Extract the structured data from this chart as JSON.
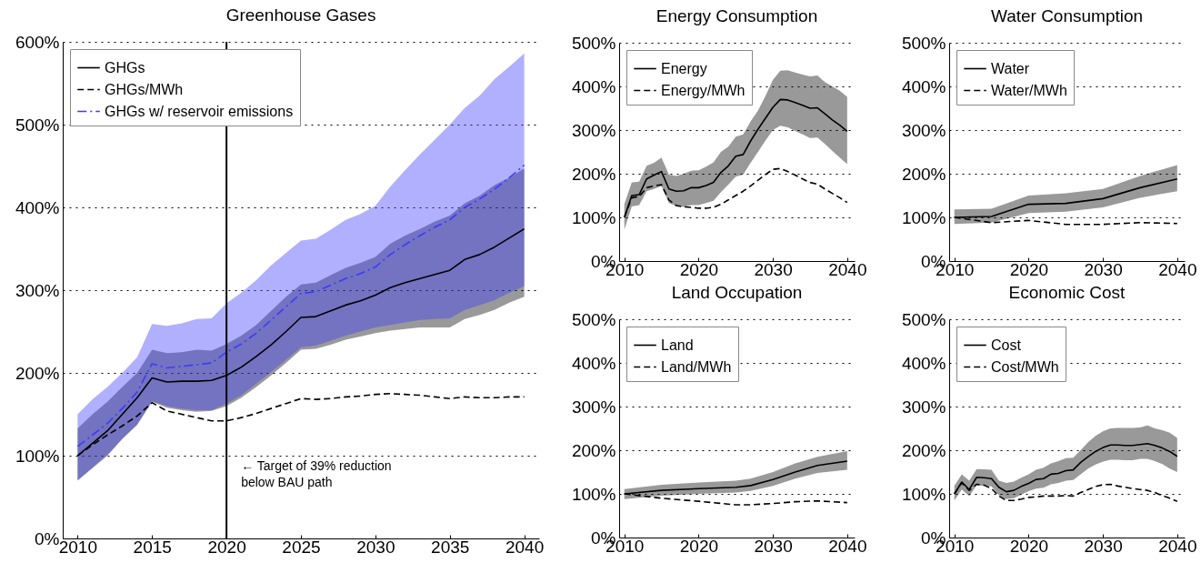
{
  "chart_data": [
    {
      "type": "line",
      "title": "Greenhouse Gases",
      "x": [
        2010,
        2011,
        2012,
        2013,
        2014,
        2015,
        2016,
        2017,
        2018,
        2019,
        2020,
        2021,
        2022,
        2023,
        2024,
        2025,
        2026,
        2027,
        2028,
        2029,
        2030,
        2031,
        2032,
        2033,
        2034,
        2035,
        2036,
        2037,
        2038,
        2039,
        2040
      ],
      "xlim": [
        2009,
        2041
      ],
      "xticks": [
        2010,
        2015,
        2020,
        2025,
        2030,
        2035,
        2040
      ],
      "ylim": [
        0,
        600
      ],
      "yticks": [
        {
          "value": 0,
          "label": "0%"
        },
        {
          "value": 100,
          "label": "100%"
        },
        {
          "value": 200,
          "label": "200%"
        },
        {
          "value": 300,
          "label": "300%"
        },
        {
          "value": 400,
          "label": "400%"
        },
        {
          "value": 500,
          "label": "500%"
        },
        {
          "value": 600,
          "label": "600%"
        }
      ],
      "grid": "y",
      "legend": "top left",
      "series": [
        {
          "name": "GHGs",
          "color": "#000000",
          "line_style": "solid",
          "values": [
            100,
            115,
            130,
            150,
            170,
            194,
            189,
            190,
            190,
            191,
            197,
            207,
            220,
            234,
            250,
            267,
            268,
            275,
            282,
            287,
            294,
            303,
            309,
            314,
            319,
            324,
            337,
            343,
            352,
            363,
            374
          ],
          "lower": [
            70,
            85,
            100,
            120,
            137,
            165,
            158,
            155,
            153,
            154,
            160,
            170,
            183,
            197,
            212,
            228,
            229,
            234,
            240,
            244,
            248,
            251,
            253,
            255,
            255,
            255,
            265,
            270,
            276,
            285,
            292
          ],
          "upper": [
            133,
            150,
            165,
            183,
            200,
            228,
            224,
            225,
            228,
            227,
            235,
            245,
            258,
            275,
            292,
            307,
            309,
            318,
            327,
            333,
            340,
            356,
            366,
            374,
            383,
            390,
            405,
            414,
            427,
            436,
            447
          ]
        },
        {
          "name": "GHGs/MWh",
          "color": "#000000",
          "line_style": "dashed",
          "values": [
            100,
            113,
            125,
            136,
            148,
            164,
            154,
            150,
            146,
            142,
            142,
            146,
            151,
            157,
            163,
            169,
            168,
            169,
            171,
            172,
            174,
            175,
            174,
            173,
            171,
            169,
            171,
            170,
            170,
            171,
            171
          ]
        },
        {
          "name": "GHGs w/ reservoir emissions",
          "color": "#3a3aff",
          "line_style": "dashdot",
          "values": [
            111,
            125,
            139,
            157,
            177,
            211,
            206,
            208,
            210,
            212,
            225,
            235,
            248,
            264,
            280,
            296,
            298,
            306,
            314,
            320,
            328,
            343,
            355,
            366,
            376,
            385,
            400,
            410,
            422,
            436,
            451
          ],
          "lower": [
            70,
            86,
            101,
            121,
            138,
            166,
            160,
            157,
            155,
            155,
            163,
            173,
            187,
            201,
            216,
            231,
            233,
            239,
            245,
            250,
            255,
            258,
            261,
            264,
            265,
            266,
            276,
            282,
            288,
            297,
            305
          ],
          "upper": [
            150,
            168,
            183,
            200,
            219,
            259,
            257,
            260,
            265,
            266,
            284,
            297,
            312,
            330,
            345,
            360,
            362,
            373,
            385,
            392,
            402,
            425,
            445,
            464,
            482,
            500,
            520,
            535,
            555,
            570,
            586
          ]
        }
      ],
      "ref_lines": [
        {
          "axis": "x",
          "value": 2020,
          "label": "← Target of 39% reduction\nbelow BAU path",
          "color": "#000000"
        }
      ]
    },
    {
      "type": "line",
      "title": "Energy Consumption",
      "x": [
        2010,
        2011,
        2012,
        2013,
        2014,
        2015,
        2016,
        2017,
        2018,
        2019,
        2020,
        2021,
        2022,
        2023,
        2024,
        2025,
        2026,
        2027,
        2028,
        2029,
        2030,
        2031,
        2032,
        2033,
        2034,
        2035,
        2036,
        2037,
        2038,
        2039,
        2040
      ],
      "xlim": [
        2009.3,
        2041
      ],
      "xticks": [
        2010,
        2020,
        2030,
        2040
      ],
      "ylim": [
        0,
        500
      ],
      "yticks": [
        {
          "value": 0,
          "label": "0%"
        },
        {
          "value": 100,
          "label": "100%"
        },
        {
          "value": 200,
          "label": "200%"
        },
        {
          "value": 300,
          "label": "300%"
        },
        {
          "value": 400,
          "label": "400%"
        },
        {
          "value": 500,
          "label": "500%"
        }
      ],
      "grid": "y",
      "legend": "top left",
      "series": [
        {
          "name": "Energy",
          "color": "#000000",
          "line_style": "solid",
          "values": [
            100,
            150,
            152,
            188,
            197,
            205,
            165,
            160,
            161,
            168,
            168,
            173,
            180,
            203,
            218,
            240,
            244,
            275,
            302,
            327,
            352,
            370,
            369,
            363,
            357,
            350,
            351,
            337,
            323,
            311,
            297
          ],
          "lower": [
            72,
            125,
            128,
            160,
            165,
            172,
            133,
            126,
            124,
            128,
            128,
            133,
            138,
            158,
            175,
            193,
            198,
            225,
            250,
            276,
            300,
            310,
            306,
            298,
            290,
            282,
            283,
            268,
            252,
            237,
            222
          ],
          "upper": [
            130,
            180,
            182,
            218,
            225,
            237,
            198,
            195,
            200,
            207,
            208,
            216,
            226,
            250,
            262,
            285,
            290,
            320,
            345,
            378,
            415,
            436,
            437,
            432,
            427,
            423,
            425,
            410,
            400,
            390,
            376
          ]
        },
        {
          "name": "Energy/MWh",
          "color": "#000000",
          "line_style": "dashed",
          "values": [
            100,
            145,
            148,
            168,
            172,
            175,
            140,
            127,
            124,
            123,
            121,
            121,
            123,
            130,
            140,
            150,
            160,
            172,
            185,
            198,
            210,
            212,
            205,
            197,
            188,
            180,
            176,
            165,
            155,
            145,
            134
          ]
        }
      ]
    },
    {
      "type": "line",
      "title": "Water Consumption",
      "x": [
        2010,
        2015,
        2020,
        2025,
        2030,
        2035,
        2040
      ],
      "xlim": [
        2009.3,
        2041
      ],
      "xticks": [
        2010,
        2020,
        2030,
        2040
      ],
      "ylim": [
        0,
        500
      ],
      "yticks": [
        {
          "value": 0,
          "label": "0%"
        },
        {
          "value": 100,
          "label": "100%"
        },
        {
          "value": 200,
          "label": "200%"
        },
        {
          "value": 300,
          "label": "300%"
        },
        {
          "value": 400,
          "label": "400%"
        },
        {
          "value": 500,
          "label": "500%"
        }
      ],
      "grid": "y",
      "legend": "top left",
      "series": [
        {
          "name": "Water",
          "color": "#000000",
          "line_style": "solid",
          "values": [
            100,
            102,
            130,
            132,
            143,
            168,
            188
          ],
          "lower": [
            85,
            88,
            110,
            113,
            123,
            145,
            160
          ],
          "upper": [
            118,
            120,
            150,
            155,
            165,
            195,
            220
          ]
        },
        {
          "name": "Water/MWh",
          "color": "#000000",
          "line_style": "dashed",
          "values": [
            100,
            88,
            93,
            84,
            84,
            88,
            86
          ]
        }
      ]
    },
    {
      "type": "line",
      "title": "Land Occupation",
      "x": [
        2010,
        2015,
        2020,
        2025,
        2027,
        2030,
        2033,
        2036,
        2040
      ],
      "xlim": [
        2009.3,
        2041
      ],
      "xticks": [
        2010,
        2020,
        2030,
        2040
      ],
      "ylim": [
        0,
        500
      ],
      "yticks": [
        {
          "value": 0,
          "label": "0%"
        },
        {
          "value": 100,
          "label": "100%"
        },
        {
          "value": 200,
          "label": "200%"
        },
        {
          "value": 300,
          "label": "300%"
        },
        {
          "value": 400,
          "label": "400%"
        },
        {
          "value": 500,
          "label": "500%"
        }
      ],
      "grid": "y",
      "legend": "top left",
      "series": [
        {
          "name": "Land",
          "color": "#000000",
          "line_style": "solid",
          "values": [
            100,
            108,
            112,
            115,
            119,
            133,
            150,
            165,
            175
          ],
          "lower": [
            88,
            96,
            100,
            103,
            107,
            118,
            135,
            148,
            155
          ],
          "upper": [
            111,
            121,
            126,
            130,
            135,
            150,
            170,
            185,
            198
          ]
        },
        {
          "name": "Land/MWh",
          "color": "#000000",
          "line_style": "dashed",
          "values": [
            100,
            90,
            83,
            75,
            75,
            78,
            82,
            84,
            80
          ]
        }
      ]
    },
    {
      "type": "line",
      "title": "Economic Cost",
      "x": [
        2010,
        2011,
        2012,
        2013,
        2014,
        2015,
        2016,
        2017,
        2018,
        2019,
        2020,
        2021,
        2022,
        2023,
        2024,
        2025,
        2026,
        2027,
        2028,
        2029,
        2030,
        2031,
        2032,
        2033,
        2034,
        2035,
        2036,
        2037,
        2038,
        2039,
        2040
      ],
      "xlim": [
        2009.3,
        2041
      ],
      "xticks": [
        2010,
        2020,
        2030,
        2040
      ],
      "ylim": [
        0,
        500
      ],
      "yticks": [
        {
          "value": 0,
          "label": "0%"
        },
        {
          "value": 100,
          "label": "100%"
        },
        {
          "value": 200,
          "label": "200%"
        },
        {
          "value": 300,
          "label": "300%"
        },
        {
          "value": 400,
          "label": "400%"
        },
        {
          "value": 500,
          "label": "500%"
        }
      ],
      "grid": "y",
      "legend": "top left",
      "series": [
        {
          "name": "Cost",
          "color": "#000000",
          "line_style": "solid",
          "values": [
            100,
            127,
            110,
            138,
            137,
            135,
            115,
            105,
            108,
            117,
            124,
            133,
            135,
            145,
            147,
            153,
            155,
            172,
            185,
            197,
            206,
            212,
            212,
            211,
            211,
            213,
            215,
            211,
            205,
            197,
            186
          ],
          "lower": [
            85,
            110,
            95,
            120,
            118,
            117,
            97,
            88,
            90,
            98,
            106,
            112,
            114,
            122,
            125,
            130,
            132,
            145,
            158,
            167,
            174,
            178,
            178,
            177,
            177,
            180,
            180,
            175,
            168,
            158,
            150
          ],
          "upper": [
            118,
            145,
            130,
            157,
            156,
            155,
            130,
            125,
            128,
            137,
            145,
            155,
            160,
            170,
            175,
            182,
            183,
            200,
            218,
            233,
            243,
            250,
            251,
            251,
            251,
            252,
            257,
            250,
            246,
            240,
            228
          ]
        },
        {
          "name": "Cost/MWh",
          "color": "#000000",
          "line_style": "dashed",
          "values": [
            100,
            125,
            108,
            122,
            120,
            112,
            95,
            85,
            85,
            88,
            92,
            93,
            95,
            95,
            95,
            96,
            95,
            103,
            110,
            117,
            121,
            122,
            118,
            115,
            112,
            110,
            108,
            103,
            96,
            90,
            83
          ]
        }
      ]
    }
  ]
}
